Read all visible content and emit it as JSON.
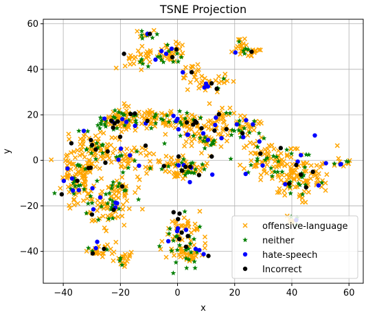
{
  "chart_data": {
    "type": "scatter",
    "title": "TSNE Projection",
    "xlabel": "x",
    "ylabel": "y",
    "xlim": [
      -47,
      65
    ],
    "ylim": [
      -54,
      62
    ],
    "xticks": [
      -40,
      -20,
      0,
      20,
      40,
      60
    ],
    "yticks": [
      -40,
      -20,
      0,
      20,
      40,
      60
    ],
    "xtick_labels": [
      "−40",
      "−20",
      "0",
      "20",
      "40",
      "60"
    ],
    "ytick_labels": [
      "−40",
      "−20",
      "0",
      "20",
      "40",
      "60"
    ],
    "grid": true,
    "legend_position": "lower-right",
    "series": [
      {
        "name": "offensive-language",
        "marker": "x",
        "color": "#ffa500"
      },
      {
        "name": "neither",
        "marker": "star",
        "color": "#008000"
      },
      {
        "name": "hate-speech",
        "marker": "circle",
        "color": "#0000ff"
      },
      {
        "name": "Incorrect",
        "marker": "circle",
        "color": "#000000"
      }
    ],
    "clusters": [
      {
        "cx": -20,
        "cy": 18,
        "sx": 4,
        "sy": 3,
        "n": 90
      },
      {
        "cx": -8,
        "cy": 19,
        "sx": 5,
        "sy": 3,
        "n": 50
      },
      {
        "cx": 2,
        "cy": 17,
        "sx": 5,
        "sy": 3,
        "n": 60
      },
      {
        "cx": -28,
        "cy": 6,
        "sx": 4,
        "sy": 5,
        "n": 80
      },
      {
        "cx": -35,
        "cy": -8,
        "sx": 4,
        "sy": 7,
        "n": 120
      },
      {
        "cx": -25,
        "cy": -20,
        "sx": 5,
        "sy": 5,
        "n": 80
      },
      {
        "cx": -17,
        "cy": 1,
        "sx": 5,
        "sy": 5,
        "n": 60
      },
      {
        "cx": -20,
        "cy": -12,
        "sx": 3,
        "sy": 3,
        "n": 30
      },
      {
        "cx": 1,
        "cy": -3,
        "sx": 6,
        "sy": 3,
        "n": 90
      },
      {
        "cx": 9,
        "cy": 8,
        "sx": 4,
        "sy": 3,
        "n": 40
      },
      {
        "cx": 15,
        "cy": 17,
        "sx": 4,
        "sy": 6,
        "n": 50
      },
      {
        "cx": 24,
        "cy": 14,
        "sx": 5,
        "sy": 4,
        "n": 50
      },
      {
        "cx": 32,
        "cy": 0,
        "sx": 6,
        "sy": 5,
        "n": 90
      },
      {
        "cx": 44,
        "cy": -7,
        "sx": 6,
        "sy": 7,
        "n": 110
      },
      {
        "cx": 40,
        "cy": -25,
        "sx": 2,
        "sy": 2,
        "n": 10
      },
      {
        "cx": 57,
        "cy": -1,
        "sx": 3,
        "sy": 1,
        "n": 15
      },
      {
        "cx": 2,
        "cy": -30,
        "sx": 4,
        "sy": 4,
        "n": 50
      },
      {
        "cx": 3,
        "cy": -41,
        "sx": 5,
        "sy": 4,
        "n": 60
      },
      {
        "cx": -27,
        "cy": -40,
        "sx": 4,
        "sy": 2,
        "n": 30
      },
      {
        "cx": -19,
        "cy": -44,
        "sx": 2,
        "sy": 2,
        "n": 20
      },
      {
        "cx": -12,
        "cy": 45,
        "sx": 4,
        "sy": 3,
        "n": 40
      },
      {
        "cx": -11,
        "cy": 55,
        "sx": 2,
        "sy": 2,
        "n": 15
      },
      {
        "cx": -2,
        "cy": 47,
        "sx": 3,
        "sy": 3,
        "n": 40
      },
      {
        "cx": 5,
        "cy": 38,
        "sx": 3,
        "sy": 3,
        "n": 20
      },
      {
        "cx": 12,
        "cy": 34,
        "sx": 4,
        "sy": 2,
        "n": 30
      },
      {
        "cx": 22,
        "cy": 50,
        "sx": 2,
        "sy": 2,
        "n": 20
      },
      {
        "cx": 26,
        "cy": 48,
        "sx": 2,
        "sy": 2,
        "n": 15
      }
    ]
  }
}
